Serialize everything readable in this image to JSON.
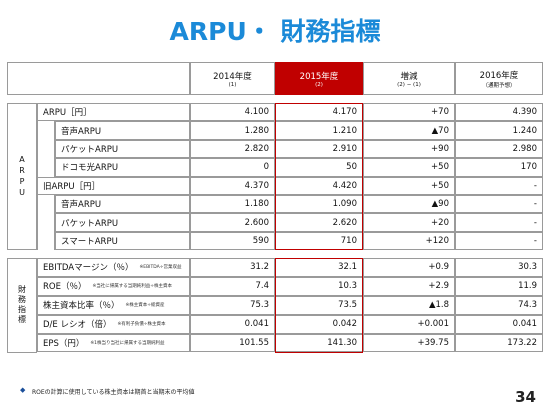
{
  "title": "ARPU・ 財務指標",
  "table": {
    "headers": [
      {
        "label": "2014年度",
        "note": "(1)"
      },
      {
        "label": "2015年度",
        "note": "(2)"
      },
      {
        "label": "増減",
        "note": "(2) − (1)"
      },
      {
        "label": "2016年度",
        "note": "（通期予想）"
      }
    ],
    "sections": [
      {
        "label": "ARPU",
        "rows": [
          {
            "name": "ARPU［円］",
            "values": [
              "4.100",
              "4.170",
              "+70",
              "4.390"
            ],
            "children": [
              {
                "name": "音声ARPU",
                "values": [
                  "1.280",
                  "1.210",
                  "▲70",
                  "1.240"
                ]
              },
              {
                "name": "パケットARPU",
                "values": [
                  "2.820",
                  "2.910",
                  "+90",
                  "2.980"
                ]
              },
              {
                "name": "ドコモ光ARPU",
                "values": [
                  "0",
                  "50",
                  "+50",
                  "170"
                ]
              }
            ]
          },
          {
            "name": "旧ARPU［円］",
            "values": [
              "4.370",
              "4.420",
              "+50",
              "-"
            ],
            "children": [
              {
                "name": "音声ARPU",
                "values": [
                  "1.180",
                  "1.090",
                  "▲90",
                  "-"
                ]
              },
              {
                "name": "パケットARPU",
                "values": [
                  "2.600",
                  "2.620",
                  "+20",
                  "-"
                ]
              },
              {
                "name": "スマートARPU",
                "values": [
                  "590",
                  "710",
                  "+120",
                  "-"
                ]
              }
            ]
          }
        ]
      },
      {
        "label": "財務指標",
        "rows": [
          {
            "name": "EBITDAマージン（％）",
            "note": "※EBITDA÷営業収益",
            "values": [
              "31.2",
              "32.1",
              "+0.9",
              "30.3"
            ]
          },
          {
            "name": "ROE（％）",
            "note": "※当社に帰属する当期純利益÷株主資本",
            "values": [
              "7.4",
              "10.3",
              "+2.9",
              "11.9"
            ]
          },
          {
            "name": "株主資本比率（％）",
            "note": "※株主資本÷総資産",
            "values": [
              "75.3",
              "73.5",
              "▲1.8",
              "74.3"
            ]
          },
          {
            "name": "D/E レシオ（倍）",
            "note": "※有利子負債÷株主資本",
            "values": [
              "0.041",
              "0.042",
              "+0.001",
              "0.041"
            ]
          },
          {
            "name": "EPS（円）",
            "note": "※1株当り当社に帰属する当期純利益",
            "values": [
              "101.55",
              "141.30",
              "+39.75",
              "173.22"
            ]
          }
        ]
      }
    ]
  },
  "footnote": "ROEの計算に使用している株主資本は期首と当期末の平均値",
  "page_number": "34"
}
